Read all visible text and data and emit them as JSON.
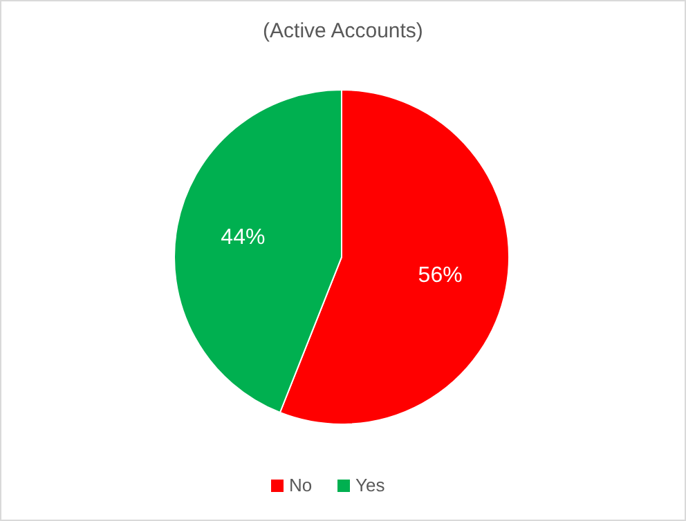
{
  "chart_data": {
    "type": "pie",
    "title": "(Active Accounts)",
    "categories": [
      "No",
      "Yes"
    ],
    "values": [
      56,
      44
    ],
    "colors": [
      "#ff0000",
      "#00b050"
    ],
    "value_labels": [
      "56%",
      "44%"
    ],
    "legend": "bottom"
  }
}
